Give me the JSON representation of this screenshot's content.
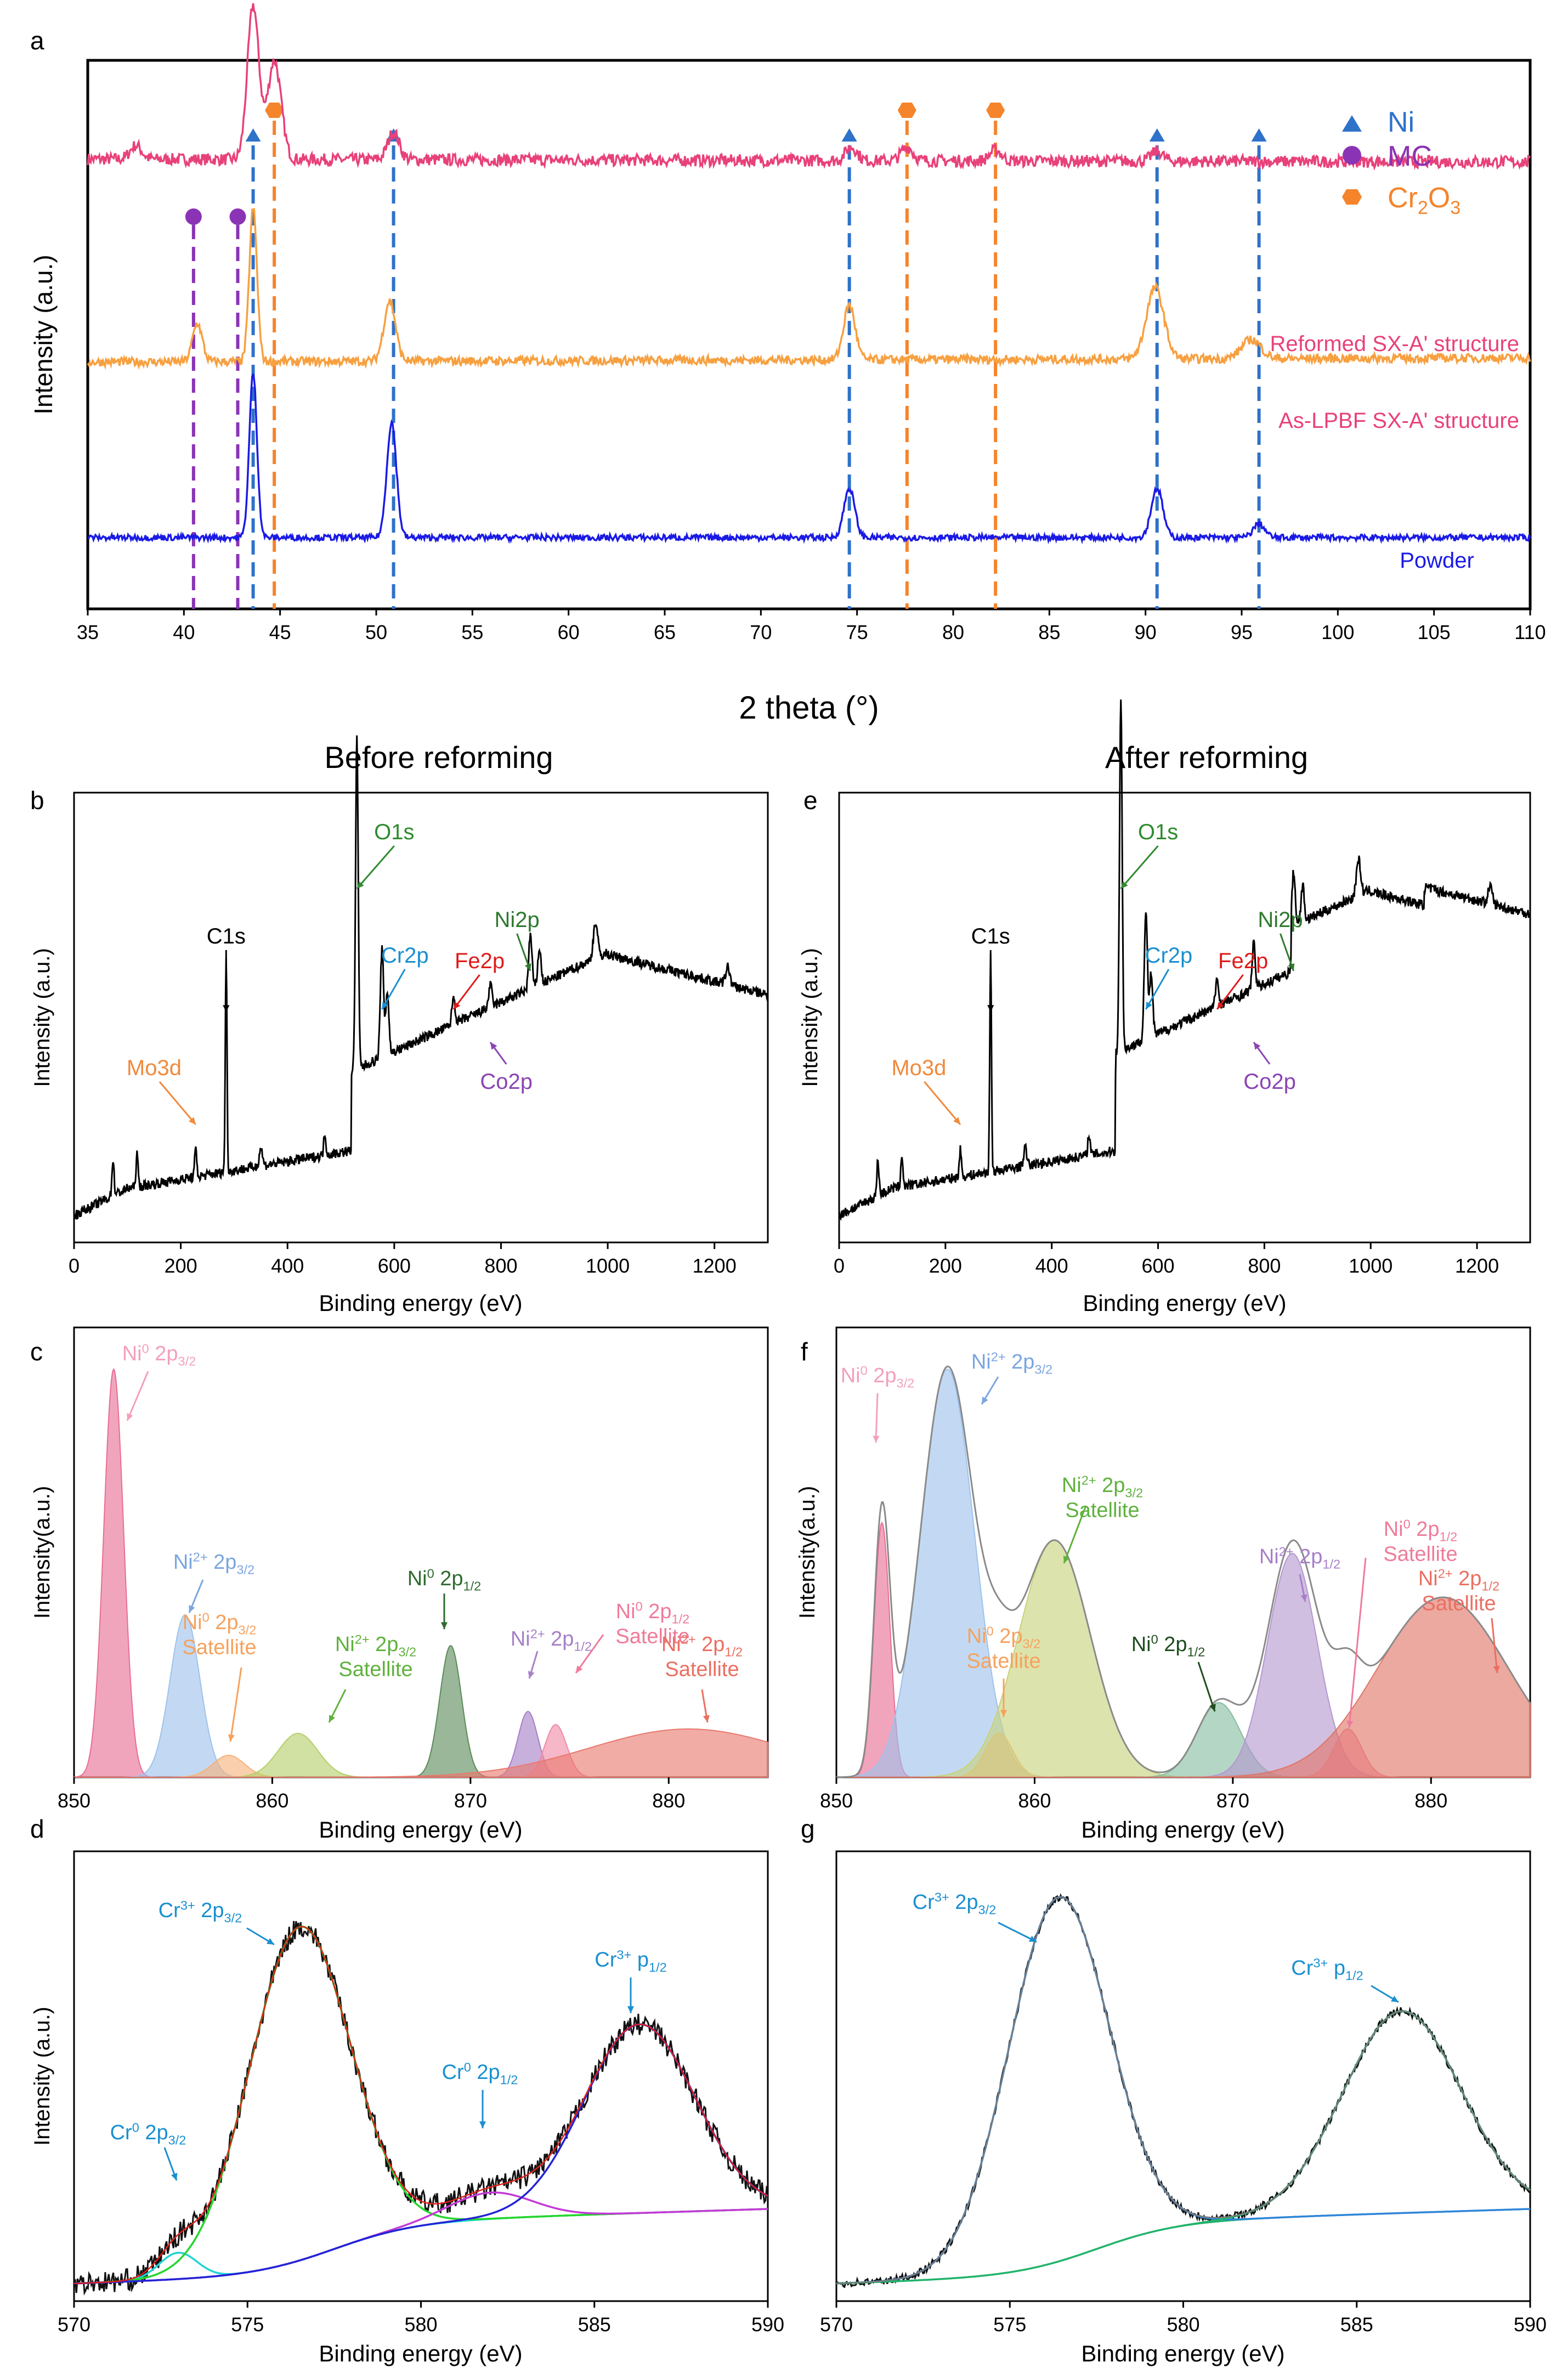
{
  "panel_letters": [
    "a",
    "b",
    "c",
    "d",
    "e",
    "f",
    "g"
  ],
  "section_headers": {
    "before": "Before reforming",
    "after": "After reforming"
  },
  "chart_data": [
    {
      "id": "a",
      "type": "line",
      "xlabel": "2 theta (°)",
      "ylabel": "Intensity (a.u.)",
      "xlim": [
        35,
        110
      ],
      "ylim": [
        0,
        100
      ],
      "xticks": [
        35,
        40,
        45,
        50,
        55,
        60,
        65,
        70,
        75,
        80,
        85,
        90,
        95,
        100,
        105,
        110
      ],
      "series": [
        {
          "name": "Reformed SX-A' structure",
          "color": "#e8417a",
          "baseline": 82,
          "slope": -0.07,
          "noise": 1.1,
          "peaks": [
            [
              43.6,
              28,
              0.3
            ],
            [
              44.7,
              18,
              0.35
            ],
            [
              50.9,
              5,
              0.3
            ],
            [
              74.7,
              2.5,
              0.3
            ],
            [
              77.6,
              2.5,
              0.3
            ],
            [
              82.2,
              2,
              0.3
            ],
            [
              90.6,
              1.8,
              0.3
            ],
            [
              37.5,
              2.5,
              0.3
            ]
          ]
        },
        {
          "name": "As-LPBF SX-A' structure",
          "color": "#f7a040",
          "baseline": 45,
          "slope": 0.1,
          "noise": 0.8,
          "peaks": [
            [
              40.7,
              7,
              0.25
            ],
            [
              43.6,
              28,
              0.2
            ],
            [
              50.7,
              11,
              0.3
            ],
            [
              74.6,
              10,
              0.3
            ],
            [
              90.5,
              13,
              0.45
            ],
            [
              95.5,
              3.5,
              0.5
            ]
          ]
        },
        {
          "name": "Powder",
          "color": "#1a1ae6",
          "baseline": 13,
          "slope": 0,
          "noise": 0.55,
          "peaks": [
            [
              43.6,
              30,
              0.2
            ],
            [
              50.8,
              21,
              0.25
            ],
            [
              74.6,
              9,
              0.28
            ],
            [
              90.6,
              9,
              0.3
            ],
            [
              95.9,
              2.5,
              0.3
            ]
          ]
        }
      ],
      "markers": [
        {
          "name": "Ni",
          "color": "#2e72c9",
          "symbol": "triangle",
          "positions": [
            43.6,
            50.9,
            74.6,
            90.6,
            95.9
          ]
        },
        {
          "name": "MC",
          "color": "#8b33b5",
          "symbol": "circle",
          "positions": [
            40.5,
            42.8
          ]
        },
        {
          "name": "Cr2O3",
          "color": "#f5842b",
          "symbol": "hexagon",
          "positions": [
            44.7,
            77.6,
            82.2
          ]
        }
      ],
      "legend": [
        {
          "label": "Ni",
          "sub": "",
          "tail": "",
          "color": "#2e72c9"
        },
        {
          "label": "MC",
          "sub": "",
          "tail": "",
          "color": "#8b33b5"
        },
        {
          "label": "Cr",
          "sub": "2",
          "tail": "O",
          "sub2": "3",
          "color": "#f5842b"
        }
      ],
      "curve_labels": [
        "Reformed SX-A' structure",
        "As-LPBF SX-A' structure",
        "Powder"
      ]
    },
    {
      "id": "b",
      "type": "line",
      "xlabel": "Binding energy (eV)",
      "ylabel": "Intensity (a.u.)",
      "xlim": [
        0,
        1300
      ],
      "ylim": [
        0,
        100
      ],
      "xticks": [
        0,
        200,
        400,
        600,
        800,
        1000,
        1200
      ],
      "annotations": [
        {
          "text": "C1s",
          "color": "#000000",
          "x": 285
        },
        {
          "text": "O1s",
          "color": "#2e8b2e",
          "x": 530
        },
        {
          "text": "Cr2p",
          "color": "#1a8fd0",
          "x": 577
        },
        {
          "text": "Fe2p",
          "color": "#e01b1b",
          "x": 711
        },
        {
          "text": "Ni2p",
          "color": "#2e7a2e",
          "x": 855
        },
        {
          "text": "Co2p",
          "color": "#8b44b5",
          "x": 780
        },
        {
          "text": "Mo3d",
          "color": "#f08a3c",
          "x": 228
        }
      ]
    },
    {
      "id": "e",
      "type": "line",
      "xlabel": "Binding energy (eV)",
      "ylabel": "Intensity (a.u.)",
      "xlim": [
        0,
        1300
      ],
      "ylim": [
        0,
        100
      ],
      "xticks": [
        0,
        200,
        400,
        600,
        800,
        1000,
        1200
      ],
      "annotations": [
        {
          "text": "C1s",
          "color": "#000000",
          "x": 285
        },
        {
          "text": "O1s",
          "color": "#2e8b2e",
          "x": 530
        },
        {
          "text": "Cr2p",
          "color": "#1a8fd0",
          "x": 577
        },
        {
          "text": "Fe2p",
          "color": "#e01b1b",
          "x": 711
        },
        {
          "text": "Ni2p",
          "color": "#2e7a2e",
          "x": 855
        },
        {
          "text": "Co2p",
          "color": "#8b44b5",
          "x": 780
        },
        {
          "text": "Mo3d",
          "color": "#f08a3c",
          "x": 228
        }
      ]
    },
    {
      "id": "c",
      "type": "area",
      "xlabel": "Binding energy (eV)",
      "ylabel": "Intensity(a.u.)",
      "xlim": [
        850,
        885
      ],
      "ylim": [
        0,
        100
      ],
      "xticks": [
        850,
        860,
        870,
        880
      ],
      "components": [
        {
          "name": "Ni0 2p3/2",
          "center": 852.0,
          "height": 93,
          "width": 0.5,
          "color": "#e86d93"
        },
        {
          "name": "Ni2+ 2p3/2",
          "center": 855.6,
          "height": 37,
          "width": 0.75,
          "color": "#9ec2ec"
        },
        {
          "name": "Ni0 2p3/2 Satellite",
          "center": 857.8,
          "height": 5,
          "width": 0.8,
          "color": "#f7b27a"
        },
        {
          "name": "Ni2+ 2p3/2 Satellite",
          "center": 861.3,
          "height": 10,
          "width": 1.0,
          "color": "#b5cf6a"
        },
        {
          "name": "Ni0 2p1/2",
          "center": 869.0,
          "height": 30,
          "width": 0.55,
          "color": "#5c8a5a"
        },
        {
          "name": "Ni2+ 2p1/2",
          "center": 872.9,
          "height": 15,
          "width": 0.5,
          "color": "#a77fc7"
        },
        {
          "name": "Ni0 2p1/2 Satellite",
          "center": 874.3,
          "height": 12,
          "width": 0.55,
          "color": "#f08aa6"
        },
        {
          "name": "Ni2+ 2p1/2 Satellite",
          "center": 881.0,
          "height": 11,
          "width": 5.0,
          "color": "#e8796e"
        }
      ],
      "labels": [
        {
          "main": "Ni",
          "sup": "0",
          "rest": " 2p",
          "sub": "3/2",
          "color": "#f3a0bc"
        },
        {
          "main": "Ni",
          "sup": "2+",
          "rest": " 2p",
          "sub": "3/2",
          "color": "#7ba6e0"
        },
        {
          "main": "Ni",
          "sup": "0",
          "rest": " 2p",
          "sub": "3/2",
          "line2": "Satellite",
          "color": "#f5a25e"
        },
        {
          "main": "Ni",
          "sup": "2+",
          "rest": " 2p",
          "sub": "3/2",
          "line2": "Satellite",
          "color": "#5fb13d"
        },
        {
          "main": "Ni",
          "sup": "0",
          "rest": " 2p",
          "sub": "1/2",
          "color": "#2e6b2e"
        },
        {
          "main": "Ni",
          "sup": "2+",
          "rest": " 2p",
          "sub": "1/2",
          "color": "#a77fc7"
        },
        {
          "main": "Ni",
          "sup": "0",
          "rest": " 2p",
          "sub": "1/2",
          "line2": "Satellite",
          "color": "#ef7b9a"
        },
        {
          "main": "Ni",
          "sup": "2+",
          "rest": " 2p",
          "sub": "1/2",
          "line2": "Satellite",
          "color": "#ea6f61"
        }
      ]
    },
    {
      "id": "f",
      "type": "area",
      "xlabel": "Binding energy (eV)",
      "ylabel": "Intensity(a.u.)",
      "xlim": [
        850,
        885
      ],
      "ylim": [
        0,
        100
      ],
      "xticks": [
        850,
        860,
        870,
        880
      ],
      "components": [
        {
          "name": "Ni0 2p3/2",
          "center": 852.3,
          "height": 58,
          "width": 0.4,
          "color": "#e86d93"
        },
        {
          "name": "Ni2+ 2p3/2",
          "center": 855.6,
          "height": 93,
          "width": 1.35,
          "color": "#9ec2ec"
        },
        {
          "name": "Ni0 2p3/2 Satellite",
          "center": 858.2,
          "height": 10,
          "width": 0.7,
          "color": "#f7b27a"
        },
        {
          "name": "Ni2+ 2p3/2 Satellite",
          "center": 861.0,
          "height": 54,
          "width": 1.8,
          "color": "#c8d27a"
        },
        {
          "name": "Ni0 2p1/2",
          "center": 869.3,
          "height": 17,
          "width": 1.1,
          "color": "#86bda0"
        },
        {
          "name": "Ni2+ 2p1/2",
          "center": 873.0,
          "height": 51,
          "width": 1.25,
          "color": "#b497cf"
        },
        {
          "name": "Ni0 2p1/2 Satellite",
          "center": 875.8,
          "height": 11,
          "width": 0.7,
          "color": "#f08aa6"
        },
        {
          "name": "Ni2+ 2p1/2 Satellite",
          "center": 880.6,
          "height": 41,
          "width": 3.3,
          "color": "#e07566"
        }
      ],
      "labels": [
        {
          "main": "Ni",
          "sup": "0",
          "rest": " 2p",
          "sub": "3/2",
          "color": "#f3a0bc"
        },
        {
          "main": "Ni",
          "sup": "2+",
          "rest": " 2p",
          "sub": "3/2",
          "color": "#7ba6e0"
        },
        {
          "main": "Ni",
          "sup": "2+",
          "rest": " 2p",
          "sub": "3/2",
          "line2": "Satellite",
          "color": "#5fb13d"
        },
        {
          "main": "Ni",
          "sup": "0",
          "rest": " 2p",
          "sub": "3/2",
          "line2": "Satellite",
          "color": "#f5a25e"
        },
        {
          "main": "Ni",
          "sup": "0",
          "rest": " 2p",
          "sub": "1/2",
          "color": "#1f4d1f"
        },
        {
          "main": "Ni",
          "sup": "2+",
          "rest": " 2p",
          "sub": "1/2",
          "color": "#a77fc7"
        },
        {
          "main": "Ni",
          "sup": "0",
          "rest": " 2p",
          "sub": "1/2",
          "line2": "Satellite",
          "color": "#ef7b9a"
        },
        {
          "main": "Ni",
          "sup": "2+",
          "rest": " 2p",
          "sub": "1/2",
          "line2": "Satellite",
          "color": "#ea6f61"
        }
      ]
    },
    {
      "id": "d",
      "type": "line",
      "xlabel": "Binding energy (eV)",
      "ylabel": "Intensity (a.u.)",
      "xlim": [
        570,
        590
      ],
      "ylim": [
        0,
        100
      ],
      "xticks": [
        570,
        575,
        580,
        585,
        590
      ],
      "components": [
        {
          "name": "Cr0 2p3/2",
          "center": 573.0,
          "height": 6,
          "width": 0.55,
          "color": "#22d3d3"
        },
        {
          "name": "Cr3+ 2p3/2",
          "center": 576.5,
          "height": 76,
          "width": 1.45,
          "color": "#24d62b"
        },
        {
          "name": "Cr0 2p1/2",
          "center": 582.0,
          "height": 6,
          "width": 1.2,
          "color": "#c33ad6"
        },
        {
          "name": "Cr3+ p1/2",
          "center": 586.3,
          "height": 43,
          "width": 1.6,
          "color": "#2323d6"
        }
      ],
      "labels": [
        {
          "main": "Cr",
          "sup": "0",
          "rest": " 2p",
          "sub": "3/2",
          "color": "#1a8fd0"
        },
        {
          "main": "Cr",
          "sup": "3+",
          "rest": " 2p",
          "sub": "3/2",
          "color": "#1a8fd0"
        },
        {
          "main": "Cr",
          "sup": "0",
          "rest": " 2p",
          "sub": "1/2",
          "color": "#1a8fd0"
        },
        {
          "main": "Cr",
          "sup": "3+",
          "rest": " p",
          "sub": "1/2",
          "color": "#1a8fd0"
        }
      ]
    },
    {
      "id": "g",
      "type": "line",
      "xlabel": "Binding energy (eV)",
      "ylabel": "Intensity (a.u.)",
      "xlim": [
        570,
        590
      ],
      "ylim": [
        0,
        100
      ],
      "xticks": [
        570,
        575,
        580,
        585,
        590
      ],
      "components": [
        {
          "name": "Cr3+ 2p3/2",
          "center": 576.4,
          "height": 83,
          "width": 1.45,
          "color": "#2f86d8"
        },
        {
          "name": "Cr3+ p1/2",
          "center": 586.3,
          "height": 46,
          "width": 1.7,
          "color": "#21b36b"
        }
      ],
      "labels": [
        {
          "main": "Cr",
          "sup": "3+",
          "rest": " 2p",
          "sub": "3/2",
          "color": "#1a8fd0"
        },
        {
          "main": "Cr",
          "sup": "3+",
          "rest": " p",
          "sub": "1/2",
          "color": "#1a8fd0"
        }
      ]
    }
  ]
}
